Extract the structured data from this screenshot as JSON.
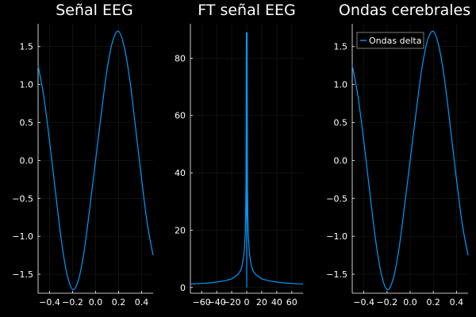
{
  "figure": {
    "background": "#000000",
    "line_color": "#009AFA",
    "text_color": "#FFFFFF"
  },
  "chart_data": [
    {
      "type": "line",
      "title": "Señal EEG",
      "xlabel": "",
      "ylabel": "",
      "xlim": [
        -0.5,
        0.5
      ],
      "ylim": [
        -1.75,
        1.8
      ],
      "xticks": [
        -0.4,
        -0.2,
        0.0,
        0.2,
        0.4
      ],
      "xtick_labels": [
        "−0.4",
        "−0.2",
        "0.0",
        "0.2",
        "0.4"
      ],
      "yticks": [
        -1.5,
        -1.0,
        -0.5,
        0.0,
        0.5,
        1.0,
        1.5
      ],
      "ytick_labels": [
        "−1.5",
        "−1.0",
        "−0.5",
        "0.0",
        "0.5",
        "1.0",
        "1.5"
      ],
      "grid": true,
      "series": [
        {
          "x": [
            -0.5,
            -0.45,
            -0.4,
            -0.35,
            -0.3,
            -0.25,
            -0.2,
            -0.15,
            -0.1,
            -0.05,
            0.0,
            0.05,
            0.1,
            0.15,
            0.2,
            0.25,
            0.3,
            0.35,
            0.4,
            0.45,
            0.5
          ],
          "values": [
            1.25,
            0.84,
            0.25,
            -0.4,
            -1.03,
            -1.49,
            -1.7,
            -1.58,
            -1.2,
            -0.62,
            0.0,
            0.62,
            1.2,
            1.58,
            1.7,
            1.49,
            1.03,
            0.4,
            -0.25,
            -0.84,
            -1.25
          ]
        }
      ]
    },
    {
      "type": "line",
      "title": "FT señal EEG",
      "xlabel": "",
      "ylabel": "",
      "xlim": [
        -75,
        75
      ],
      "ylim": [
        -2,
        92
      ],
      "xticks": [
        -60,
        -40,
        -20,
        0,
        20,
        40,
        60
      ],
      "xtick_labels": [
        "−60",
        "−40",
        "−20",
        "0",
        "20",
        "40",
        "60"
      ],
      "yticks": [
        0,
        20,
        40,
        60,
        80
      ],
      "ytick_labels": [
        "0",
        "20",
        "40",
        "60",
        "80"
      ],
      "grid": true,
      "series": [
        {
          "x": [
            -75,
            -60,
            -45,
            -30,
            -20,
            -12,
            -8,
            -6,
            -4,
            -3,
            -2,
            -1.5,
            -1,
            -0.5,
            0,
            0.5,
            1,
            1.5,
            2,
            3,
            4,
            6,
            8,
            12,
            20,
            30,
            45,
            60,
            75
          ],
          "values": [
            1.2,
            1.4,
            1.7,
            2.3,
            3.0,
            4.5,
            6.0,
            7.8,
            11,
            14,
            19,
            25,
            35,
            89,
            0,
            89,
            35,
            25,
            19,
            14,
            11,
            7.8,
            6.0,
            4.5,
            3.0,
            2.3,
            1.7,
            1.4,
            1.2
          ]
        }
      ]
    },
    {
      "type": "line",
      "title": "Ondas cerebrales",
      "xlabel": "",
      "ylabel": "",
      "xlim": [
        -0.5,
        0.5
      ],
      "ylim": [
        -1.75,
        1.8
      ],
      "xticks": [
        -0.4,
        -0.2,
        0.0,
        0.2,
        0.4
      ],
      "xtick_labels": [
        "−0.4",
        "−0.2",
        "0.0",
        "0.2",
        "0.4"
      ],
      "yticks": [
        -1.5,
        -1.0,
        -0.5,
        0.0,
        0.5,
        1.0,
        1.5
      ],
      "ytick_labels": [
        "−1.5",
        "−1.0",
        "−0.5",
        "0.0",
        "0.5",
        "1.0",
        "1.5"
      ],
      "grid": true,
      "legend": "top-left",
      "series": [
        {
          "name": "Ondas delta",
          "x": [
            -0.5,
            -0.45,
            -0.4,
            -0.35,
            -0.3,
            -0.25,
            -0.2,
            -0.15,
            -0.1,
            -0.05,
            0.0,
            0.05,
            0.1,
            0.15,
            0.2,
            0.25,
            0.3,
            0.35,
            0.4,
            0.45,
            0.5
          ],
          "values": [
            1.25,
            0.84,
            0.25,
            -0.4,
            -1.03,
            -1.49,
            -1.7,
            -1.58,
            -1.2,
            -0.62,
            0.0,
            0.62,
            1.2,
            1.58,
            1.7,
            1.49,
            1.03,
            0.4,
            -0.25,
            -0.84,
            -1.25
          ]
        }
      ]
    }
  ]
}
